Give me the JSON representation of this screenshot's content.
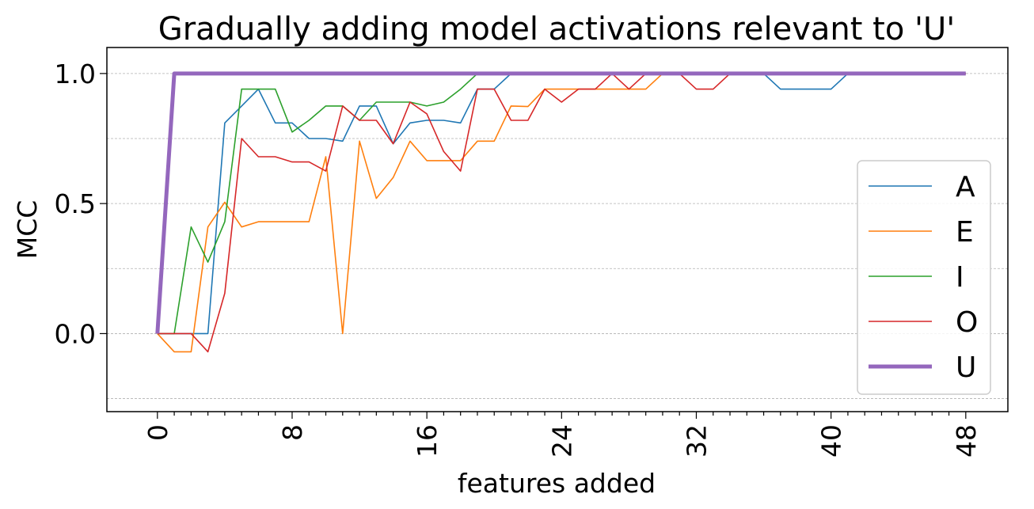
{
  "chart_data": {
    "type": "line",
    "title": "Gradually adding model activations relevant to 'U'",
    "xlabel": "features added",
    "ylabel": "MCC",
    "xlim": [
      -3,
      50.5
    ],
    "ylim": [
      -0.3,
      1.1
    ],
    "xticks": [
      0,
      8,
      16,
      24,
      32,
      40,
      48
    ],
    "xtick_labels": [
      "0",
      "8",
      "16",
      "24",
      "32",
      "40",
      "48"
    ],
    "yticks": [
      0.0,
      0.5,
      1.0
    ],
    "ytick_labels": [
      "0.0",
      "0.5",
      "1.0"
    ],
    "grid": "y-dashed",
    "legend_position": "center-right",
    "x": [
      0,
      1,
      2,
      3,
      4,
      5,
      6,
      7,
      8,
      9,
      10,
      11,
      12,
      13,
      14,
      15,
      16,
      17,
      18,
      19,
      20,
      21,
      22,
      23,
      24,
      25,
      26,
      27,
      28,
      29,
      30,
      31,
      32,
      33,
      34,
      35,
      36,
      37,
      38,
      39,
      40,
      41,
      42,
      43,
      44,
      45,
      46,
      47,
      48
    ],
    "series": [
      {
        "name": "A",
        "color": "#1f77b4",
        "width": 1.6,
        "values": [
          0,
          0,
          0,
          0,
          0.81,
          0.875,
          0.94,
          0.81,
          0.81,
          0.75,
          0.75,
          0.74,
          0.875,
          0.875,
          0.73,
          0.81,
          0.82,
          0.82,
          0.81,
          0.94,
          0.94,
          1,
          1,
          1,
          1,
          1,
          1,
          1,
          1,
          1,
          1,
          1,
          1,
          1,
          1,
          1,
          1,
          0.94,
          0.94,
          0.94,
          0.94,
          1,
          1,
          1,
          1,
          1,
          1,
          1,
          1
        ]
      },
      {
        "name": "E",
        "color": "#ff7f0e",
        "width": 1.6,
        "values": [
          0,
          -0.07,
          -0.07,
          0.41,
          0.505,
          0.41,
          0.43,
          0.43,
          0.43,
          0.43,
          0.68,
          0,
          0.74,
          0.52,
          0.6,
          0.74,
          0.665,
          0.665,
          0.665,
          0.74,
          0.74,
          0.875,
          0.873,
          0.94,
          0.94,
          0.94,
          0.94,
          0.94,
          0.94,
          0.94,
          1,
          1,
          1,
          1,
          1,
          1,
          1,
          1,
          1,
          1,
          1,
          1,
          1,
          1,
          1,
          1,
          1,
          1,
          1
        ]
      },
      {
        "name": "I",
        "color": "#2ca02c",
        "width": 1.6,
        "values": [
          0,
          0,
          0.41,
          0.275,
          0.43,
          0.94,
          0.94,
          0.94,
          0.775,
          0.82,
          0.875,
          0.875,
          0.82,
          0.89,
          0.89,
          0.89,
          0.875,
          0.89,
          0.94,
          1,
          1,
          1,
          1,
          1,
          1,
          1,
          1,
          1,
          1,
          1,
          1,
          1,
          1,
          1,
          1,
          1,
          1,
          1,
          1,
          1,
          1,
          1,
          1,
          1,
          1,
          1,
          1,
          1,
          1
        ]
      },
      {
        "name": "O",
        "color": "#d62728",
        "width": 1.6,
        "values": [
          0,
          0,
          0,
          -0.07,
          0.155,
          0.75,
          0.68,
          0.68,
          0.66,
          0.66,
          0.625,
          0.875,
          0.82,
          0.82,
          0.73,
          0.89,
          0.845,
          0.7,
          0.625,
          0.94,
          0.94,
          0.82,
          0.82,
          0.94,
          0.89,
          0.94,
          0.94,
          1,
          0.94,
          1,
          1,
          1,
          0.94,
          0.94,
          1,
          1,
          1,
          1,
          1,
          1,
          1,
          1,
          1,
          1,
          1,
          1,
          1,
          1,
          1
        ]
      },
      {
        "name": "U",
        "color": "#9467bd",
        "width": 5,
        "values": [
          0,
          1,
          1,
          1,
          1,
          1,
          1,
          1,
          1,
          1,
          1,
          1,
          1,
          1,
          1,
          1,
          1,
          1,
          1,
          1,
          1,
          1,
          1,
          1,
          1,
          1,
          1,
          1,
          1,
          1,
          1,
          1,
          1,
          1,
          1,
          1,
          1,
          1,
          1,
          1,
          1,
          1,
          1,
          1,
          1,
          1,
          1,
          1,
          1
        ]
      }
    ]
  }
}
